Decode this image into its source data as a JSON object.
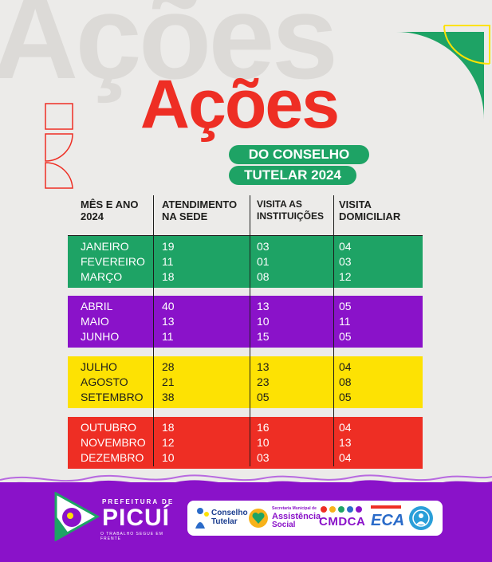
{
  "title": "Ações",
  "subtitle_line1": "DO CONSELHO",
  "subtitle_line2": "TUTELAR 2024",
  "headers": {
    "col1": [
      "MÊS E ANO",
      "2024"
    ],
    "col2": [
      "ATENDIMENTO",
      "NA SEDE"
    ],
    "col3": [
      "VISITA AS",
      "INSTITUIÇÕES"
    ],
    "col4": [
      "VISITA",
      "DOMICILIAR"
    ]
  },
  "groups": [
    {
      "color": "#1ea365",
      "rows": [
        [
          "JANEIRO",
          "19",
          "03",
          "04"
        ],
        [
          "FEVEREIRO",
          "11",
          "01",
          "03"
        ],
        [
          "MARÇO",
          "18",
          "08",
          "12"
        ]
      ]
    },
    {
      "color": "#8a12c9",
      "rows": [
        [
          "ABRIL",
          "40",
          "13",
          "05"
        ],
        [
          "MAIO",
          "13",
          "10",
          "11"
        ],
        [
          "JUNHO",
          "11",
          "15",
          "05"
        ]
      ]
    },
    {
      "color": "#fde203",
      "rows": [
        [
          "JULHO",
          "28",
          "13",
          "04"
        ],
        [
          "AGOSTO",
          "21",
          "23",
          "08"
        ],
        [
          "SETEMBRO",
          "38",
          "05",
          "05"
        ]
      ]
    },
    {
      "color": "#ee2e24",
      "rows": [
        [
          "OUTUBRO",
          "18",
          "16",
          "04"
        ],
        [
          "NOVEMBRO",
          "12",
          "10",
          "13"
        ],
        [
          "DEZEMBRO",
          "10",
          "03",
          "04"
        ]
      ]
    }
  ],
  "footer": {
    "prefeitura": "PREFEITURA DE",
    "city": "PICUÍ",
    "slogan": "O TRABALHO SEGUE EM FRENTE",
    "partners": {
      "conselho": [
        "Conselho",
        "Tutelar"
      ],
      "assistencia": [
        "Secretaria Municipal de",
        "Assistência",
        "Social"
      ],
      "cmdca": "CMDCA",
      "eca": "ECA"
    }
  },
  "colors": {
    "red": "#ee2e24",
    "green": "#1ea365",
    "purple": "#8a12c9",
    "yellow": "#fde203"
  }
}
